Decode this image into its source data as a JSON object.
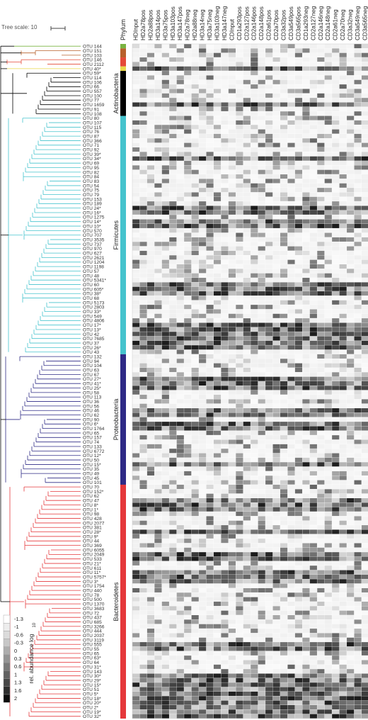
{
  "tree_scale_label": "Tree scale: 10",
  "legend_title": "rel. abundance log",
  "legend_subscript": "10",
  "phylum_header": "Phylum",
  "colors": {
    "actinobacteria": "#000000",
    "firmicutes": "#45c3cd",
    "proteobacteria": "#2e2a86",
    "bacteroidetes": "#e5383b",
    "top1": "#79b441",
    "top2": "#b8612c",
    "top3": "#e54a38",
    "top4": "#e8d84a"
  },
  "chart_data": {
    "type": "heatmap",
    "columns": [
      "HDInput",
      "HD2a78pos",
      "HD2a88pos",
      "HD3a14pos",
      "HD3a75pos",
      "HD3a103pos",
      "HD3a147pos",
      "HD2a78neg",
      "HD2a88neg",
      "HD3a14neg",
      "HD3a75neg",
      "HD3a103neg",
      "HD3a147neg",
      "CDInput",
      "CD1a293pos",
      "CD2a127pos",
      "CD2a146pos",
      "CD2a148pos",
      "CD2a61pos",
      "CD2a70pos",
      "CD3a32pos",
      "CD3a549pos",
      "CD3a565pos",
      "CD1a293neg",
      "CD2a127neg",
      "CD2a146neg",
      "CD2a148neg",
      "CD2a61neg",
      "CD2a70neg",
      "CD3a32neg",
      "CD3a549neg",
      "CD3a565neg"
    ],
    "rows": [
      "OTU 144",
      "OTU 151",
      "OTU 103",
      "OTU 146",
      "OTU 2112",
      "OTU 40*",
      "OTU 59*",
      "OTU 114",
      "OTU 106",
      "OTU 66",
      "OTU 557",
      "OTU 100",
      "OTU 77",
      "OTU 1659",
      "OTU 91",
      "OTU 108",
      "OTU 80",
      "OTU 107",
      "OTU 115",
      "OTU 76",
      "OTU 87",
      "OTU 366",
      "OTU 71",
      "OTU 92",
      "OTU 39*",
      "OTU 34*",
      "OTU 69",
      "OTU 95",
      "OTU 82",
      "OTU 84",
      "OTU 83",
      "OTU 54",
      "OTU 75",
      "OTU 79",
      "OTU 153",
      "OTU 189",
      "OTU 24*",
      "OTU 16*",
      "OTU 1275",
      "OTU 14*",
      "OTU 10*",
      "OTU 570",
      "OTU 707",
      "OTU 3535",
      "OTU 737",
      "OTU 970",
      "OTU 627",
      "OTU 2621",
      "OTU 1204",
      "OTU 1198",
      "OTU 57",
      "OTU 48",
      "OTU 5341*",
      "OTU 60",
      "OTU 605*",
      "OTU 38*",
      "OTU 68",
      "OTU 5173",
      "OTU 2803",
      "OTU 33*",
      "OTU 549",
      "OTU 4806",
      "OTU 17*",
      "OTU 13*",
      "OTU 42",
      "OTU 7685",
      "OTU 37",
      "OTU 26*",
      "OTU 43",
      "OTU 132",
      "OTU 94",
      "OTU 104",
      "OTU 63",
      "OTU 67",
      "OTU 27*",
      "OTU 41*",
      "OTU 25*",
      "OTU 58",
      "OTU 113",
      "OTU 36",
      "OTU 56",
      "OTU 46",
      "OTU 62",
      "OTU 90",
      "OTU 6*",
      "OTU 1764",
      "OTU 65",
      "OTU 157",
      "OTU 74",
      "OTU 133",
      "OTU 6772",
      "OTU 12*",
      "OTU 50",
      "OTU 15*",
      "OTU 35",
      "OTU 49",
      "OTU 45",
      "OTU 101",
      "OTU 70",
      "OTU 152*",
      "OTU 62",
      "OTU 47",
      "OTU 8*",
      "OTU 1*",
      "OTU 98",
      "OTU 428",
      "OTU 2077",
      "OTU 381",
      "OTU 28*",
      "OTU 9*",
      "OTU 44",
      "OTU 369",
      "OTU 6055",
      "OTU 2049",
      "OTU 533",
      "OTU 21*",
      "OTU 611",
      "OTU 11*",
      "OTU 5757*",
      "OTU 3*",
      "OTU 1754",
      "OTU 440",
      "OTU 78",
      "OTU 500",
      "OTU 1370",
      "OTU 3683",
      "OTU 72",
      "OTU 437",
      "OTU 685",
      "OTU 3266",
      "OTU 444",
      "OTU 2037",
      "OTU 3119",
      "OTU 555",
      "OTU 55",
      "OTU 65",
      "OTU 63*",
      "OTU 64",
      "OTU 31*",
      "OTU 143",
      "OTU 30*",
      "OTU 29*",
      "OTU 15*",
      "OTU 51",
      "OTU 5*",
      "OTU 18*",
      "OTU 20*",
      "OTU 2*",
      "OTU 19*",
      "OTU 32*"
    ],
    "phyla": [
      {
        "name": "",
        "start": 0,
        "end": 0,
        "color": "top1"
      },
      {
        "name": "",
        "start": 1,
        "end": 2,
        "color": "top2"
      },
      {
        "name": "",
        "start": 3,
        "end": 4,
        "color": "top3"
      },
      {
        "name": "",
        "start": 5,
        "end": 5,
        "color": "top4"
      },
      {
        "name": "Actinobacteria",
        "start": 6,
        "end": 15,
        "color": "actinobacteria"
      },
      {
        "name": "Firmicutes",
        "start": 16,
        "end": 68,
        "color": "firmicutes"
      },
      {
        "name": "Proteobacteria",
        "start": 69,
        "end": 97,
        "color": "proteobacteria"
      },
      {
        "name": "Bacteroidetes",
        "start": 98,
        "end": 149,
        "color": "bacteroidetes"
      }
    ],
    "legend": {
      "levels": [
        "-1.3",
        "-1",
        "-0.6",
        "-0.3",
        "0",
        "0.3",
        "0.6",
        "1",
        "1.3",
        "1.6",
        "2"
      ],
      "greys": [
        0.0,
        0.07,
        0.14,
        0.22,
        0.32,
        0.42,
        0.52,
        0.62,
        0.72,
        0.82,
        0.95
      ]
    },
    "approx_values": "values estimated from grey intensity, scale -1.3 to 2"
  }
}
